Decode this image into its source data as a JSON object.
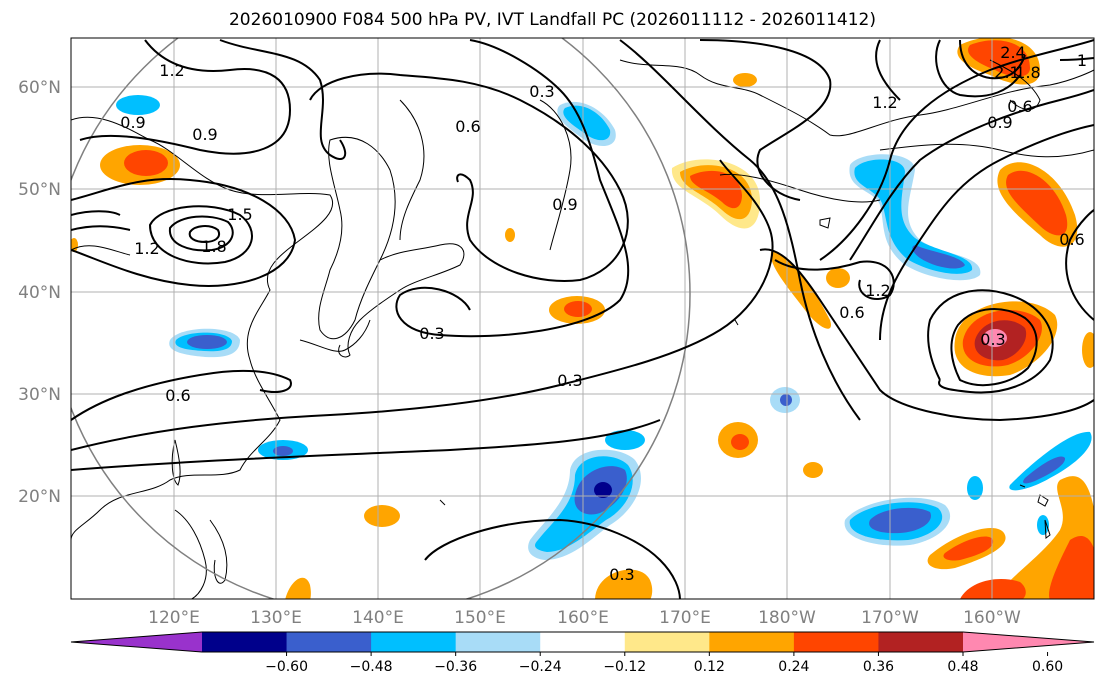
{
  "title": "2026010900 F084 500 hPa PV, IVT Landfall PC (2026011112 - 2026011412)",
  "map": {
    "lat_labels": [
      "60°N",
      "50°N",
      "40°N",
      "30°N",
      "20°N"
    ],
    "lon_labels": [
      "120°E",
      "130°E",
      "140°E",
      "150°E",
      "160°E",
      "170°E",
      "180°W",
      "170°W",
      "160°W"
    ],
    "contour_labels": [
      "1.2",
      "0.9",
      "0.9",
      "1.5",
      "1.8",
      "1.2",
      "0.6",
      "0.3",
      "0.6",
      "0.9",
      "0.3",
      "0.3",
      "1.2",
      "0.6",
      "1.2",
      "2.4",
      "2.1",
      "1.8",
      "0.9",
      "0.6",
      "0.3",
      "0.6",
      "0.3",
      "1"
    ]
  },
  "colorbar": {
    "ticks": [
      "−0.60",
      "−0.48",
      "−0.36",
      "−0.24",
      "−0.12",
      "0.12",
      "0.24",
      "0.36",
      "0.48",
      "0.60"
    ],
    "colors": [
      "#9932cc",
      "#00008b",
      "#3a5fcd",
      "#00bfff",
      "#a8dcf7",
      "#ffffff",
      "#ffe88a",
      "#ffa500",
      "#ff4500",
      "#b22222",
      "#ff88b0"
    ]
  }
}
